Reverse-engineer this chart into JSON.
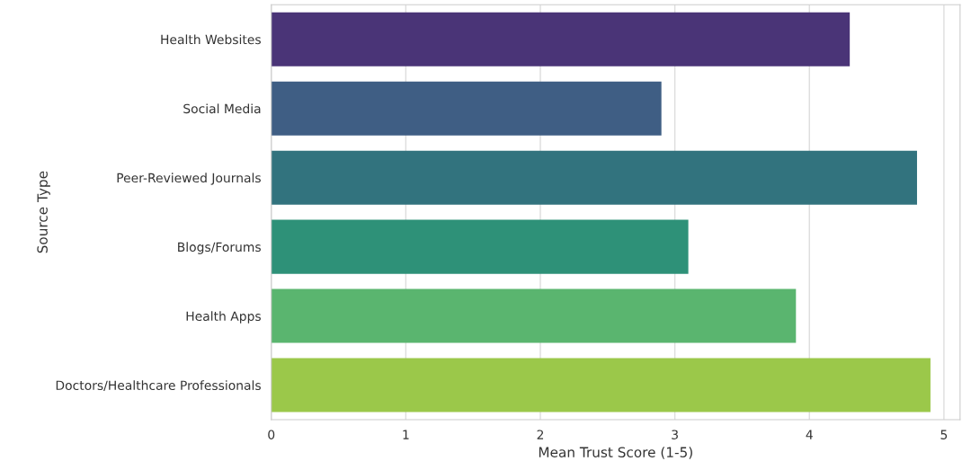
{
  "chart_data": {
    "type": "bar",
    "orientation": "horizontal",
    "xlabel": "Mean Trust Score (1-5)",
    "ylabel": "Source Type",
    "categories": [
      "Health Websites",
      "Social Media",
      "Peer-Reviewed Journals",
      "Blogs/Forums",
      "Health Apps",
      "Doctors/Healthcare Professionals"
    ],
    "values": [
      4.3,
      2.9,
      4.8,
      3.1,
      3.9,
      4.9
    ],
    "colors": [
      "#4a3477",
      "#3f5e84",
      "#32737e",
      "#2e9178",
      "#5ab56f",
      "#9bc84a"
    ],
    "xlim": [
      0,
      5.12
    ],
    "xticks": [
      0,
      1,
      2,
      3,
      4,
      5
    ],
    "grid": "x"
  }
}
